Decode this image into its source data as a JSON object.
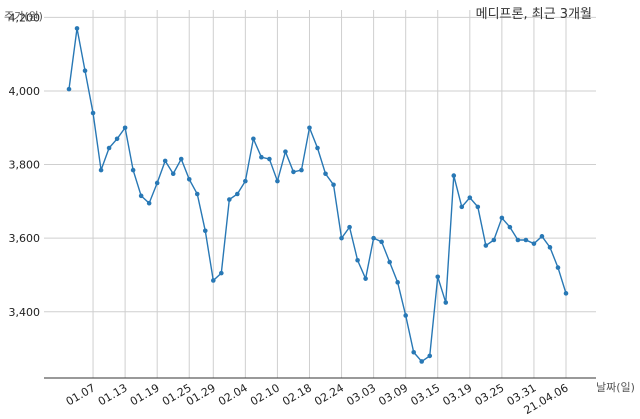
{
  "chart_data": {
    "type": "line",
    "title": "메디프론, 최근 3개월",
    "xlabel": "날짜(일)",
    "ylabel": "주가(원)",
    "ylim": [
      3220,
      4220
    ],
    "yticks": [
      3400,
      3600,
      3800,
      4000,
      4200
    ],
    "ytick_labels": [
      "3,400",
      "3,600",
      "3,800",
      "4,000",
      "4,200"
    ],
    "grid": true,
    "color": "#2878b5",
    "xtick_labels": [
      "01.07",
      "01.13",
      "01.19",
      "01.25",
      "01.29",
      "02.04",
      "02.10",
      "02.18",
      "02.24",
      "03.03",
      "03.09",
      "03.15",
      "03.19",
      "03.25",
      "03.31",
      "21.04.06"
    ],
    "xtick_indices": [
      3,
      7,
      11,
      15,
      18,
      22,
      26,
      30,
      34,
      38,
      42,
      46,
      50,
      54,
      58,
      62
    ],
    "series": [
      {
        "values": [
          4005,
          4170,
          4055,
          3940,
          3785,
          3845,
          3870,
          3900,
          3785,
          3715,
          3695,
          3750,
          3810,
          3775,
          3815,
          3760,
          3720,
          3620,
          3485,
          3505,
          3705,
          3720,
          3755,
          3870,
          3820,
          3815,
          3755,
          3835,
          3780,
          3785,
          3900,
          3845,
          3775,
          3745,
          3600,
          3630,
          3540,
          3490,
          3600,
          3590,
          3535,
          3480,
          3390,
          3290,
          3265,
          3280,
          3495,
          3425,
          3770,
          3685,
          3710,
          3685,
          3580,
          3595,
          3655,
          3630,
          3595,
          3595,
          3585,
          3605,
          3575,
          3520,
          3450
        ]
      }
    ]
  }
}
